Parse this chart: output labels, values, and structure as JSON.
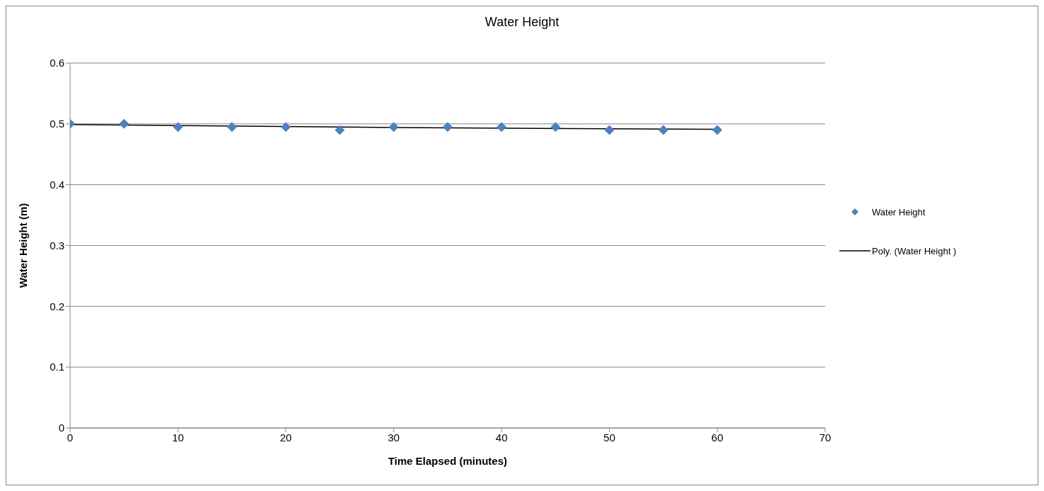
{
  "chart_data": {
    "type": "scatter",
    "title": "Water Height",
    "xlabel": "Time Elapsed (minutes)",
    "ylabel": "Water Height (m)",
    "x": [
      0,
      5,
      10,
      15,
      20,
      25,
      30,
      35,
      40,
      45,
      50,
      55,
      60
    ],
    "series": [
      {
        "name": "Water Height",
        "color": "#4f81bd",
        "values": [
          0.5,
          0.5,
          0.495,
          0.495,
          0.495,
          0.49,
          0.495,
          0.495,
          0.495,
          0.495,
          0.49,
          0.49,
          0.49
        ]
      },
      {
        "name": "Poly. (Water Height )",
        "type": "line",
        "marker": "none",
        "color": "#000000",
        "x": [
          0,
          30,
          60
        ],
        "values": [
          0.499,
          0.494,
          0.491
        ]
      }
    ],
    "xlim": [
      0,
      70
    ],
    "xticks": [
      0,
      10,
      20,
      30,
      40,
      50,
      60,
      70
    ],
    "ylim": [
      0,
      0.6
    ],
    "yticks": [
      0,
      0.1,
      0.2,
      0.3,
      0.4,
      0.5,
      0.6
    ],
    "grid": "y",
    "legend": "right",
    "marker": "diamond",
    "line_style": "solid"
  }
}
